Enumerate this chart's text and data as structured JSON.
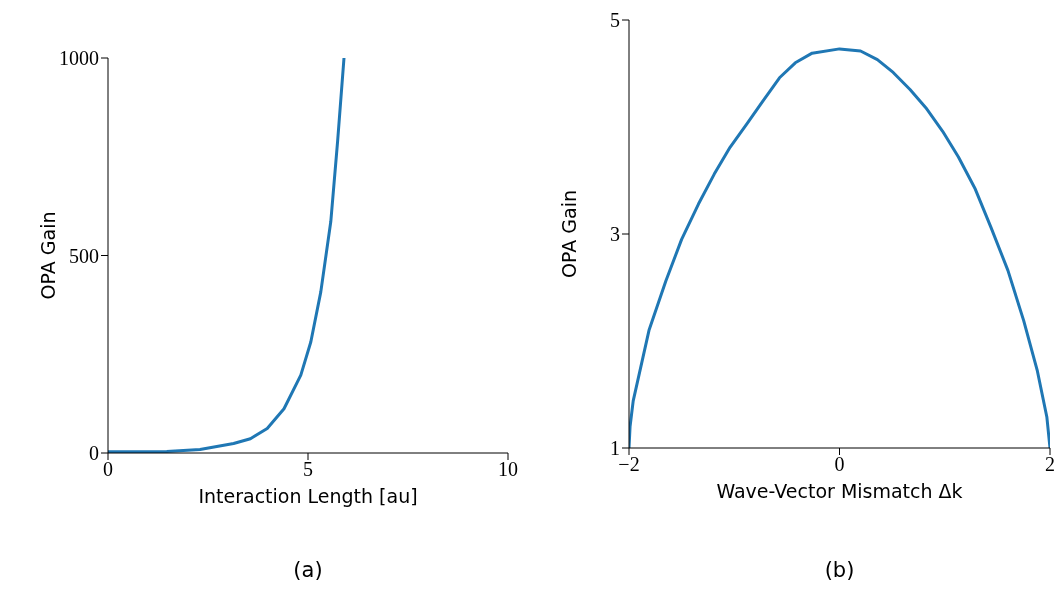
{
  "chart_data": [
    {
      "type": "line",
      "xlabel": "Interaction Length [au]",
      "ylabel": "OPA Gain",
      "xlim": [
        0,
        10
      ],
      "xticks": [
        0,
        5,
        10
      ],
      "ylim": [
        0,
        1000
      ],
      "yticks": [
        0,
        500,
        1000
      ],
      "line_style": "solid",
      "annotations": [
        "(a)"
      ],
      "series": [
        {
          "color": "#1f77b4",
          "x": [
            0,
            0.63,
            1.47,
            2.3,
            3.14,
            3.56,
            3.98,
            4.4,
            4.82,
            5.07,
            5.32,
            5.57,
            5.74,
            5.9
          ],
          "values": [
            3,
            3,
            4,
            9,
            24,
            36,
            62,
            112,
            197,
            281,
            408,
            586,
            789,
            1000
          ]
        }
      ]
    },
    {
      "type": "line",
      "xlabel": "Wave-Vector Mismatch Δk",
      "ylabel": "OPA Gain",
      "xlim": [
        -2,
        2
      ],
      "xticks": [
        -2,
        0,
        2
      ],
      "ylim": [
        1,
        5
      ],
      "yticks": [
        1,
        3,
        5
      ],
      "line_style": "solid",
      "annotations": [
        "(b)"
      ],
      "series": [
        {
          "color": "#1f77b4",
          "x": [
            -2,
            -1.99,
            -1.96,
            -1.81,
            -1.65,
            -1.5,
            -1.34,
            -1.19,
            -1.04,
            -0.88,
            -0.73,
            -0.57,
            -0.42,
            -0.26,
            0,
            0.2,
            0.36,
            0.51,
            0.67,
            0.82,
            0.98,
            1.13,
            1.29,
            1.44,
            1.6,
            1.75,
            1.88,
            1.97,
            2
          ],
          "values": [
            1,
            1.2,
            1.44,
            2.1,
            2.56,
            2.95,
            3.28,
            3.56,
            3.81,
            4.03,
            4.24,
            4.46,
            4.6,
            4.69,
            4.73,
            4.71,
            4.63,
            4.51,
            4.35,
            4.18,
            3.96,
            3.72,
            3.42,
            3.06,
            2.66,
            2.19,
            1.72,
            1.29,
            1
          ]
        }
      ]
    }
  ]
}
